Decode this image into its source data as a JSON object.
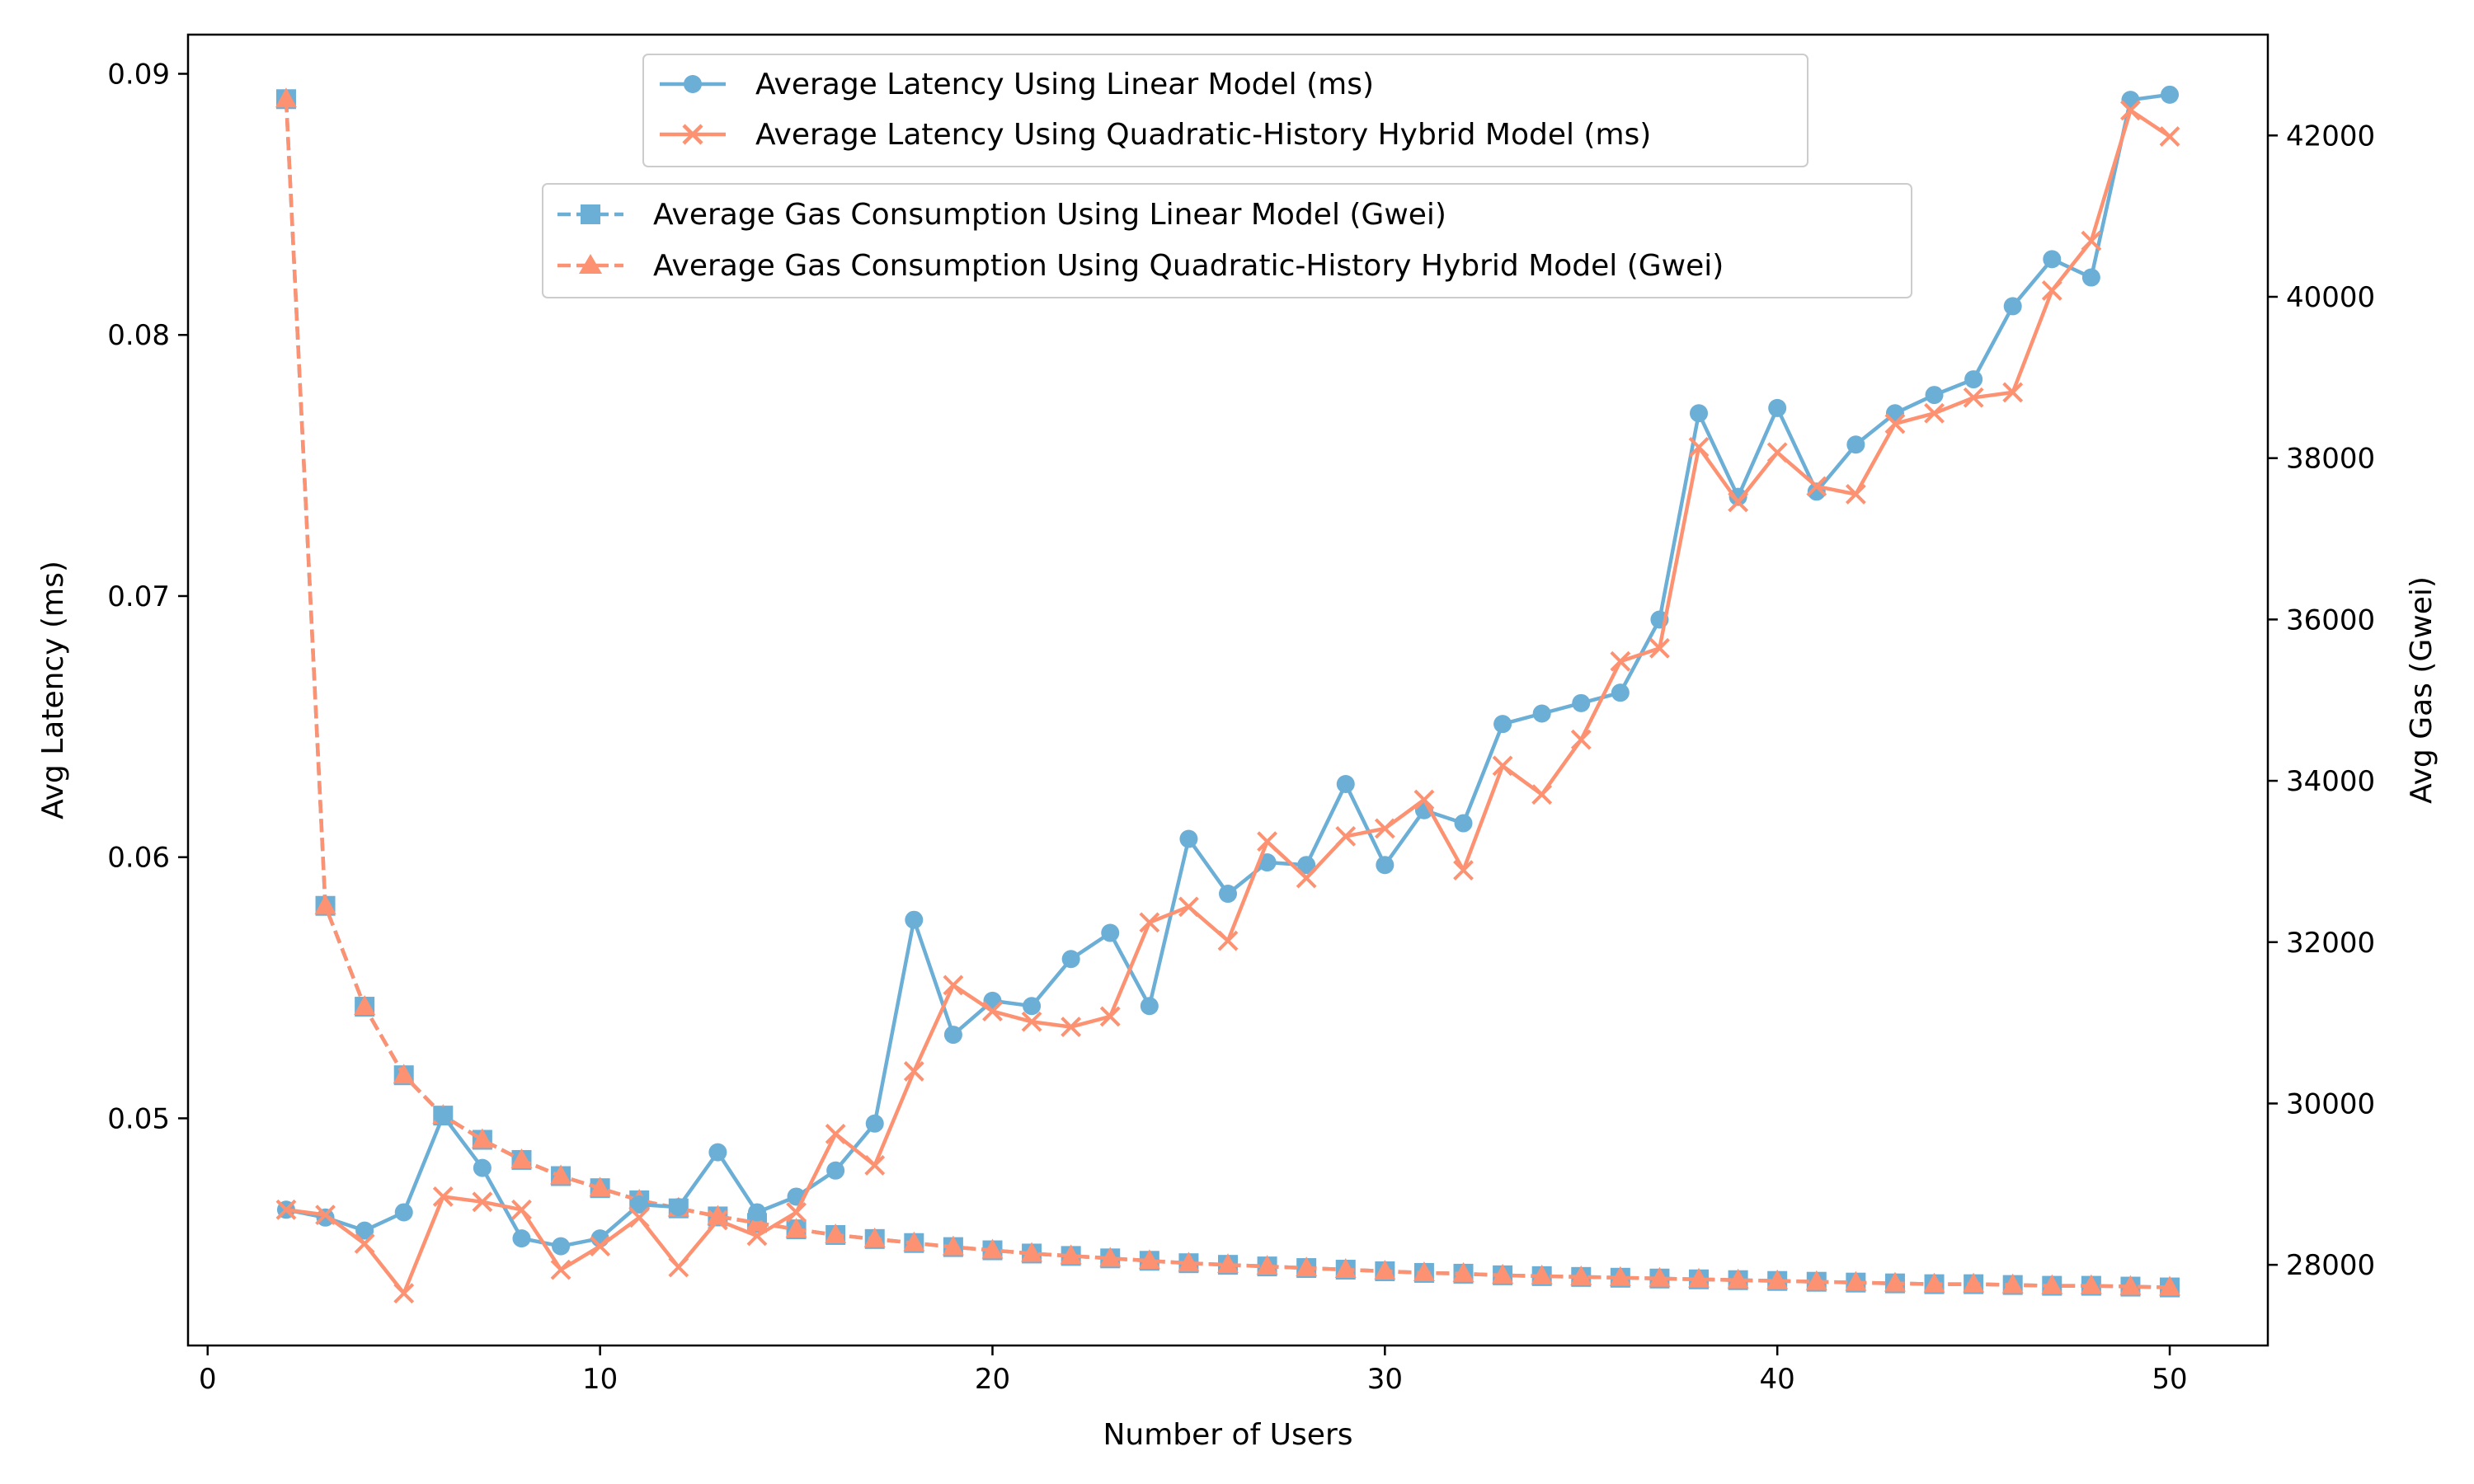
{
  "chart_data": {
    "type": "line",
    "xlabel": "Number of Users",
    "ylabel_left": "Avg Latency (ms)",
    "ylabel_right": "Avg Gas (Gwei)",
    "xlim": [
      -0.5,
      52.5
    ],
    "ylim_left": [
      0.0413,
      0.0915
    ],
    "ylim_right": [
      27000,
      43250
    ],
    "x_ticks": [
      0,
      10,
      20,
      30,
      40,
      50
    ],
    "y_left_ticks": [
      0.05,
      0.06,
      0.07,
      0.08,
      0.09
    ],
    "y_left_tick_labels": [
      "0.05",
      "0.06",
      "0.07",
      "0.08",
      "0.09"
    ],
    "y_right_ticks": [
      28000,
      30000,
      32000,
      34000,
      36000,
      38000,
      40000,
      42000
    ],
    "grid": false,
    "legend_placement": "upper-center",
    "x": [
      2,
      3,
      4,
      5,
      6,
      7,
      8,
      9,
      10,
      11,
      12,
      13,
      14,
      15,
      16,
      17,
      18,
      19,
      20,
      21,
      22,
      23,
      24,
      25,
      26,
      27,
      28,
      29,
      30,
      31,
      32,
      33,
      34,
      35,
      36,
      37,
      38,
      39,
      40,
      41,
      42,
      43,
      44,
      45,
      46,
      47,
      48,
      49,
      50
    ],
    "series": [
      {
        "name": "Average Latency Using Linear Model (ms)",
        "axis": "left",
        "color": "#6baed6",
        "marker": "circle",
        "linestyle": "solid",
        "values": [
          0.0465,
          0.0462,
          0.0457,
          0.0464,
          0.0501,
          0.0481,
          0.0454,
          0.0451,
          0.0454,
          0.0467,
          0.0466,
          0.0487,
          0.0464,
          0.047,
          0.048,
          0.0498,
          0.0576,
          0.0532,
          0.0545,
          0.0543,
          0.0561,
          0.0571,
          0.0543,
          0.0607,
          0.0586,
          0.0598,
          0.0597,
          0.0628,
          0.0597,
          0.0618,
          0.0613,
          0.0651,
          0.0655,
          0.0659,
          0.0663,
          0.0691,
          0.077,
          0.0738,
          0.0772,
          0.074,
          0.0758,
          0.077,
          0.0777,
          0.0783,
          0.0811,
          0.0829,
          0.0822,
          0.089,
          0.0892
        ]
      },
      {
        "name": "Average Latency Using Quadratic-History Hybrid Model (ms)",
        "axis": "left",
        "color": "#fc9272",
        "marker": "x",
        "linestyle": "solid",
        "values": [
          0.0465,
          0.0463,
          0.0452,
          0.0433,
          0.047,
          0.0468,
          0.0465,
          0.0442,
          0.0451,
          0.0462,
          0.0443,
          0.0461,
          0.0455,
          0.0464,
          0.0494,
          0.0482,
          0.0518,
          0.0551,
          0.0541,
          0.0537,
          0.0535,
          0.0539,
          0.0575,
          0.0581,
          0.0568,
          0.0606,
          0.0592,
          0.0608,
          0.0611,
          0.0622,
          0.0595,
          0.0635,
          0.0624,
          0.0645,
          0.0675,
          0.068,
          0.0757,
          0.0736,
          0.0755,
          0.0742,
          0.0739,
          0.0766,
          0.077,
          0.0776,
          0.0778,
          0.0817,
          0.0836,
          0.0886,
          0.0876
        ]
      },
      {
        "name": "Average Gas Consumption Using Linear Model (Gwei)",
        "axis": "right",
        "color": "#6baed6",
        "marker": "square",
        "linestyle": "dashed",
        "values": [
          42450,
          32450,
          31200,
          30350,
          29850,
          29550,
          29300,
          29100,
          28950,
          28800,
          28700,
          28600,
          28520,
          28440,
          28370,
          28320,
          28270,
          28220,
          28180,
          28140,
          28110,
          28080,
          28050,
          28020,
          28000,
          27980,
          27960,
          27940,
          27920,
          27900,
          27890,
          27870,
          27860,
          27850,
          27840,
          27830,
          27820,
          27810,
          27800,
          27790,
          27780,
          27770,
          27760,
          27760,
          27750,
          27740,
          27740,
          27730,
          27720
        ]
      },
      {
        "name": "Average Gas Consumption Using Quadratic-History Hybrid Model (Gwei)",
        "axis": "right",
        "color": "#fc9272",
        "marker": "triangle",
        "linestyle": "dashed",
        "values": [
          42450,
          32450,
          31200,
          30350,
          29850,
          29550,
          29300,
          29100,
          28950,
          28800,
          28700,
          28600,
          28520,
          28440,
          28370,
          28320,
          28270,
          28220,
          28180,
          28140,
          28110,
          28080,
          28050,
          28020,
          28000,
          27980,
          27960,
          27940,
          27920,
          27900,
          27890,
          27870,
          27860,
          27850,
          27840,
          27830,
          27820,
          27810,
          27800,
          27790,
          27780,
          27770,
          27760,
          27760,
          27750,
          27740,
          27740,
          27730,
          27720
        ]
      }
    ]
  }
}
